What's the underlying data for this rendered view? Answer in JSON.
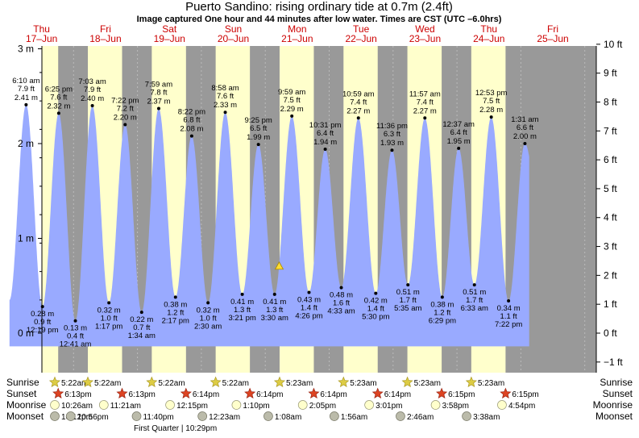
{
  "title": "Puerto Sandino: rising  ordinary tide at 0.7m (2.4ft)",
  "subtitle": "Image captured One hour and 44 minutes after low water. Times are CST (UTC –6.0hrs)",
  "days": [
    {
      "dow": "Thu",
      "date": "17–Jun"
    },
    {
      "dow": "Fri",
      "date": "18–Jun"
    },
    {
      "dow": "Sat",
      "date": "19–Jun"
    },
    {
      "dow": "Sun",
      "date": "20–Jun"
    },
    {
      "dow": "Mon",
      "date": "21–Jun"
    },
    {
      "dow": "Tue",
      "date": "22–Jun"
    },
    {
      "dow": "Wed",
      "date": "23–Jun"
    },
    {
      "dow": "Thu",
      "date": "24–Jun"
    },
    {
      "dow": "Fri",
      "date": "25–Jun"
    }
  ],
  "left_axis_labels": [
    "3 m",
    "2 m",
    "1 m",
    "0 m"
  ],
  "right_axis_labels": [
    "10 ft",
    "9 ft",
    "8 ft",
    "7 ft",
    "6 ft",
    "5 ft",
    "4 ft",
    "3 ft",
    "2 ft",
    "1 ft",
    "0 ft",
    "−1 ft"
  ],
  "colors": {
    "night": "#999999",
    "day": "#ffffcc",
    "tide_fill": "#99aaff",
    "date_text": "#cc0000",
    "sun_icon": "#ddcc44",
    "sunset_icon": "#dd4422",
    "moonrise_icon": "#ffffcc",
    "moonset_icon": "#bbbbaa"
  },
  "chart_data": {
    "type": "area",
    "title": "Puerto Sandino: rising  ordinary tide at 0.7m (2.4ft)",
    "xlabel": "",
    "ylabel": "",
    "ylim_m": [
      -0.35,
      3.08
    ],
    "now_marker": {
      "day": 4.0,
      "hour": 5.23,
      "height_m": 0.7
    },
    "extremes": [
      {
        "type": "high",
        "day": 0,
        "hour": 6.17,
        "time": "6:10 am",
        "ft": "7.9 ft",
        "m": 2.41
      },
      {
        "type": "low",
        "day": 0,
        "hour": 12.32,
        "time": "12:19 pm",
        "ft": "0.9 ft",
        "m": 0.28
      },
      {
        "type": "high",
        "day": 0,
        "hour": 18.42,
        "time": "6:25 pm",
        "ft": "7.6 ft",
        "m": 2.32
      },
      {
        "type": "low",
        "day": 1,
        "hour": 0.68,
        "time": "12:41 am",
        "ft": "0.4 ft",
        "m": 0.13
      },
      {
        "type": "high",
        "day": 1,
        "hour": 7.05,
        "time": "7:03 am",
        "ft": "7.9 ft",
        "m": 2.4
      },
      {
        "type": "low",
        "day": 1,
        "hour": 13.28,
        "time": "1:17 pm",
        "ft": "1.0 ft",
        "m": 0.32
      },
      {
        "type": "high",
        "day": 1,
        "hour": 19.37,
        "time": "7:22 pm",
        "ft": "7.2 ft",
        "m": 2.2
      },
      {
        "type": "low",
        "day": 2,
        "hour": 1.57,
        "time": "1:34 am",
        "ft": "0.7 ft",
        "m": 0.22
      },
      {
        "type": "high",
        "day": 2,
        "hour": 7.98,
        "time": "7:59 am",
        "ft": "7.8 ft",
        "m": 2.37
      },
      {
        "type": "low",
        "day": 2,
        "hour": 14.28,
        "time": "2:17 pm",
        "ft": "1.2 ft",
        "m": 0.38
      },
      {
        "type": "high",
        "day": 2,
        "hour": 20.37,
        "time": "8:22 pm",
        "ft": "6.8 ft",
        "m": 2.08
      },
      {
        "type": "low",
        "day": 3,
        "hour": 2.5,
        "time": "2:30 am",
        "ft": "1.0 ft",
        "m": 0.32
      },
      {
        "type": "high",
        "day": 3,
        "hour": 8.97,
        "time": "8:58 am",
        "ft": "7.6 ft",
        "m": 2.33
      },
      {
        "type": "low",
        "day": 3,
        "hour": 15.35,
        "time": "3:21 pm",
        "ft": "1.3 ft",
        "m": 0.41
      },
      {
        "type": "high",
        "day": 3,
        "hour": 21.42,
        "time": "9:25 pm",
        "ft": "6.5 ft",
        "m": 1.99
      },
      {
        "type": "low",
        "day": 4,
        "hour": 3.5,
        "time": "3:30 am",
        "ft": "1.3 ft",
        "m": 0.41
      },
      {
        "type": "high",
        "day": 4,
        "hour": 9.98,
        "time": "9:59 am",
        "ft": "7.5 ft",
        "m": 2.29
      },
      {
        "type": "low",
        "day": 4,
        "hour": 16.43,
        "time": "4:26 pm",
        "ft": "1.4 ft",
        "m": 0.43
      },
      {
        "type": "high",
        "day": 4,
        "hour": 22.52,
        "time": "10:31 pm",
        "ft": "6.4 ft",
        "m": 1.94
      },
      {
        "type": "low",
        "day": 5,
        "hour": 4.55,
        "time": "4:33 am",
        "ft": "1.6 ft",
        "m": 0.48
      },
      {
        "type": "high",
        "day": 5,
        "hour": 10.98,
        "time": "10:59 am",
        "ft": "7.4 ft",
        "m": 2.27
      },
      {
        "type": "low",
        "day": 5,
        "hour": 17.5,
        "time": "5:30 pm",
        "ft": "1.4 ft",
        "m": 0.42
      },
      {
        "type": "high",
        "day": 5,
        "hour": 23.6,
        "time": "11:36 pm",
        "ft": "6.3 ft",
        "m": 1.93
      },
      {
        "type": "low",
        "day": 6,
        "hour": 5.58,
        "time": "5:35 am",
        "ft": "1.7 ft",
        "m": 0.51
      },
      {
        "type": "high",
        "day": 6,
        "hour": 11.95,
        "time": "11:57 am",
        "ft": "7.4 ft",
        "m": 2.27
      },
      {
        "type": "low",
        "day": 6,
        "hour": 18.48,
        "time": "6:29 pm",
        "ft": "1.2 ft",
        "m": 0.38
      },
      {
        "type": "high",
        "day": 7,
        "hour": 0.62,
        "time": "12:37 am",
        "ft": "6.4 ft",
        "m": 1.95
      },
      {
        "type": "low",
        "day": 7,
        "hour": 6.55,
        "time": "6:33 am",
        "ft": "1.7 ft",
        "m": 0.51
      },
      {
        "type": "high",
        "day": 7,
        "hour": 12.88,
        "time": "12:53 pm",
        "ft": "7.5 ft",
        "m": 2.28
      },
      {
        "type": "low",
        "day": 7,
        "hour": 19.37,
        "time": "7:22 pm",
        "ft": "1.1 ft",
        "m": 0.34
      },
      {
        "type": "high",
        "day": 8,
        "hour": 1.52,
        "time": "1:31 am",
        "ft": "6.6 ft",
        "m": 2.0
      }
    ]
  },
  "sun_moon": {
    "labels": {
      "sunrise": "Sunrise",
      "sunset": "Sunset",
      "moonrise": "Moonrise",
      "moonset": "Moonset"
    },
    "sunrise": [
      {
        "day": 0,
        "hour": 5.37,
        "text": "5:22am"
      },
      {
        "day": 1,
        "hour": 5.37,
        "text": "5:22am"
      },
      {
        "day": 2,
        "hour": 5.37,
        "text": "5:22am"
      },
      {
        "day": 3,
        "hour": 5.37,
        "text": "5:22am"
      },
      {
        "day": 4,
        "hour": 5.38,
        "text": "5:23am"
      },
      {
        "day": 5,
        "hour": 5.38,
        "text": "5:23am"
      },
      {
        "day": 6,
        "hour": 5.38,
        "text": "5:23am"
      },
      {
        "day": 7,
        "hour": 5.38,
        "text": "5:23am"
      }
    ],
    "sunset": [
      {
        "day": 0,
        "hour": 18.22,
        "text": "6:13pm"
      },
      {
        "day": 1,
        "hour": 18.22,
        "text": "6:13pm"
      },
      {
        "day": 2,
        "hour": 18.23,
        "text": "6:14pm"
      },
      {
        "day": 3,
        "hour": 18.23,
        "text": "6:14pm"
      },
      {
        "day": 4,
        "hour": 18.23,
        "text": "6:14pm"
      },
      {
        "day": 5,
        "hour": 18.23,
        "text": "6:14pm"
      },
      {
        "day": 6,
        "hour": 18.25,
        "text": "6:15pm"
      },
      {
        "day": 7,
        "hour": 18.25,
        "text": "6:15pm"
      }
    ],
    "moonrise": [
      {
        "day": 0,
        "hour": 10.43,
        "text": "10:26am"
      },
      {
        "day": 1,
        "hour": 11.35,
        "text": "11:21am"
      },
      {
        "day": 2,
        "hour": 12.25,
        "text": "12:15pm"
      },
      {
        "day": 3,
        "hour": 13.17,
        "text": "1:10pm"
      },
      {
        "day": 4,
        "hour": 14.08,
        "text": "2:05pm"
      },
      {
        "day": 5,
        "hour": 15.02,
        "text": "3:01pm"
      },
      {
        "day": 6,
        "hour": 15.97,
        "text": "3:58pm"
      },
      {
        "day": 7,
        "hour": 16.9,
        "text": "4:54pm"
      }
    ],
    "moonset": [
      {
        "day": -1,
        "hour": 22.2,
        "text": "10:12pm"
      },
      {
        "day": 0,
        "hour": 22.93,
        "text": "10:56pm"
      },
      {
        "day": 1,
        "hour": 23.67,
        "text": "11:40pm"
      },
      {
        "day": 3,
        "hour": 0.38,
        "text": "12:23am"
      },
      {
        "day": 4,
        "hour": 1.13,
        "text": "1:08am"
      },
      {
        "day": 5,
        "hour": 1.93,
        "text": "1:56am"
      },
      {
        "day": 6,
        "hour": 2.77,
        "text": "2:46am"
      },
      {
        "day": 7,
        "hour": 3.63,
        "text": "3:38am"
      }
    ],
    "moon_phase": {
      "text": "First Quarter | 10:29pm"
    }
  }
}
